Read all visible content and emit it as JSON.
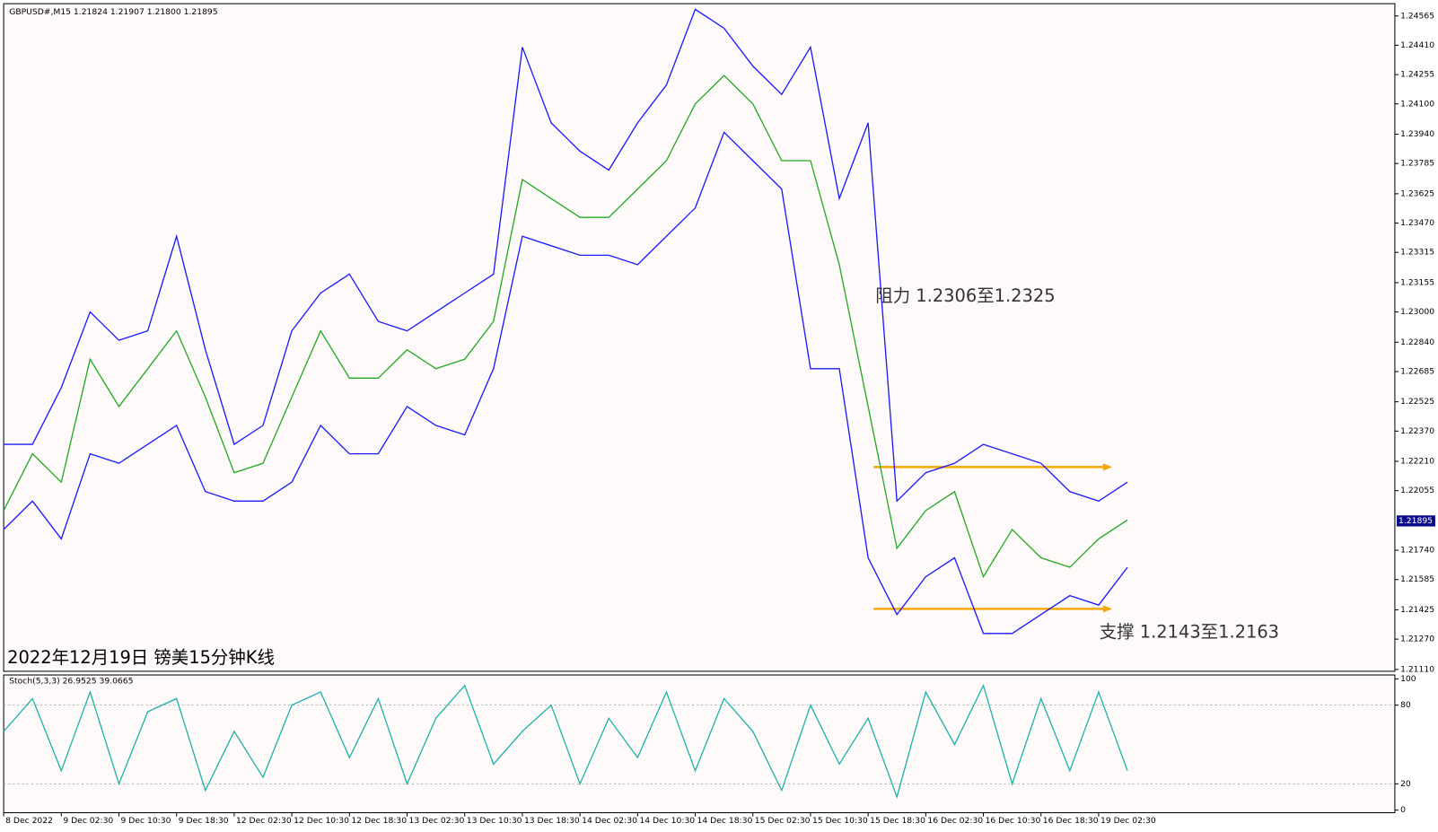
{
  "chart_data": [
    {
      "type": "line",
      "header": "GBPUSD#,M15  1.21824 1.21907 1.21800 1.21895",
      "title": "2022年12月19日 镑美15分钟K线",
      "annotations": [
        "阻力 1.2306至1.2325",
        "支撑 1.2143至1.2163"
      ],
      "categories": [
        "8 Dec 2022",
        null,
        "9 Dec 02:30",
        null,
        "9 Dec 10:30",
        null,
        "9 Dec 18:30",
        null,
        "12 Dec 02:30",
        null,
        "12 Dec 10:30",
        null,
        "12 Dec 18:30",
        null,
        "13 Dec 02:30",
        null,
        "13 Dec 10:30",
        null,
        "13 Dec 18:30",
        null,
        "14 Dec 02:30",
        null,
        "14 Dec 10:30",
        null,
        "14 Dec 18:30",
        null,
        "15 Dec 02:30",
        null,
        "15 Dec 10:30",
        null,
        "15 Dec 18:30",
        null,
        "16 Dec 02:30",
        null,
        "16 Dec 10:30",
        null,
        "16 Dec 18:30",
        null,
        "19 Dec 02:30",
        null
      ],
      "series": [
        {
          "name": "Close",
          "color": "#22aa22",
          "values": [
            1.2195,
            1.2225,
            1.221,
            1.2275,
            1.225,
            1.227,
            1.229,
            1.2255,
            1.2215,
            1.222,
            1.2255,
            1.229,
            1.2265,
            1.2265,
            1.228,
            1.227,
            1.2275,
            1.2295,
            1.237,
            1.236,
            1.235,
            1.235,
            1.2365,
            1.238,
            1.241,
            1.2425,
            1.241,
            1.238,
            1.238,
            1.2325,
            1.225,
            1.2175,
            1.2195,
            1.2205,
            1.216,
            1.2185,
            1.217,
            1.2165,
            1.218,
            1.219
          ]
        },
        {
          "name": "Upper",
          "color": "#1a1aff",
          "values": [
            1.223,
            1.223,
            1.226,
            1.23,
            1.2285,
            1.229,
            1.234,
            1.228,
            1.223,
            1.224,
            1.229,
            1.231,
            1.232,
            1.2295,
            1.229,
            1.23,
            1.231,
            1.232,
            1.244,
            1.24,
            1.2385,
            1.2375,
            1.24,
            1.242,
            1.246,
            1.245,
            1.243,
            1.2415,
            1.244,
            1.236,
            1.24,
            1.22,
            1.2215,
            1.222,
            1.223,
            1.2225,
            1.222,
            1.2205,
            1.22,
            1.221
          ]
        },
        {
          "name": "Lower",
          "color": "#1a1aff",
          "values": [
            1.2185,
            1.22,
            1.218,
            1.2225,
            1.222,
            1.223,
            1.224,
            1.2205,
            1.22,
            1.22,
            1.221,
            1.224,
            1.2225,
            1.2225,
            1.225,
            1.224,
            1.2235,
            1.227,
            1.234,
            1.2335,
            1.233,
            1.233,
            1.2325,
            1.234,
            1.2355,
            1.2395,
            1.238,
            1.2365,
            1.227,
            1.227,
            1.217,
            1.214,
            1.216,
            1.217,
            1.213,
            1.213,
            1.214,
            1.215,
            1.2145,
            1.2165
          ]
        }
      ],
      "hlines": [
        1.2218,
        1.2143
      ],
      "hline_color": "#f5a800",
      "current_price": 1.21895,
      "ylim": [
        1.211,
        1.2463
      ],
      "yticks": [
        1.24565,
        {
          "value": 1.2441,
          "label": "1.24410"
        },
        1.24255,
        {
          "value": 1.241,
          "label": "1.24100"
        },
        {
          "value": 1.2394,
          "label": "1.23940"
        },
        1.23785,
        1.23625,
        {
          "value": 1.2347,
          "label": "1.23470"
        },
        1.23315,
        1.23155,
        {
          "value": 1.23,
          "label": "1.23000"
        },
        {
          "value": 1.2284,
          "label": "1.22840"
        },
        1.22685,
        1.22525,
        {
          "value": 1.2237,
          "label": "1.22370"
        },
        {
          "value": 1.2221,
          "label": "1.22210"
        },
        1.22055,
        {
          "value": 1.2174,
          "label": "1.21740"
        },
        1.21585,
        1.21425,
        {
          "value": 1.2127,
          "label": "1.21270"
        },
        {
          "value": 1.2111,
          "label": "1.21110"
        }
      ]
    },
    {
      "type": "line",
      "header": "Stoch(5,3,3) 26.9525 39.0665",
      "series": [
        {
          "name": "Stoch",
          "color": "#20b2aa",
          "values": [
            60,
            85,
            30,
            90,
            20,
            75,
            85,
            15,
            60,
            25,
            80,
            90,
            40,
            85,
            20,
            70,
            95,
            35,
            60,
            80,
            20,
            70,
            40,
            90,
            30,
            85,
            60,
            15,
            80,
            35,
            70,
            10,
            90,
            50,
            95,
            20,
            85,
            30,
            90,
            30
          ]
        }
      ],
      "ylim": [
        -2,
        103
      ],
      "yticks": [
        0,
        20,
        80,
        100
      ],
      "grid_ticks": [
        20,
        80
      ]
    }
  ]
}
